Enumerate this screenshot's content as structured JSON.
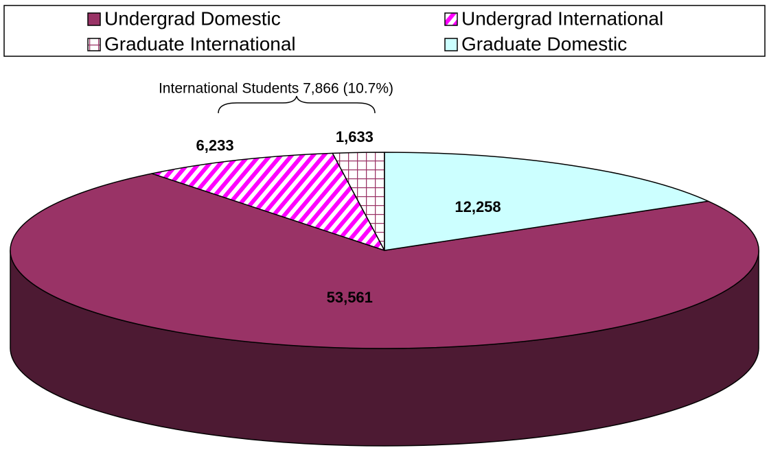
{
  "chart_data": {
    "type": "pie3d",
    "categories": [
      "Undergrad Domestic",
      "Undergrad International",
      "Graduate International",
      "Graduate Domestic"
    ],
    "values": [
      53561,
      6233,
      1633,
      12258
    ],
    "value_labels": [
      "53,561",
      "6,233",
      "1,633",
      "12,258"
    ],
    "colors": [
      "#993366",
      "#ff00ff",
      "#993366",
      "#ccffff"
    ],
    "patterns": [
      "solid",
      "diagonal",
      "grid",
      "solid"
    ],
    "annotation": "International Students 7,866 (10.7%)",
    "legend": "top"
  }
}
